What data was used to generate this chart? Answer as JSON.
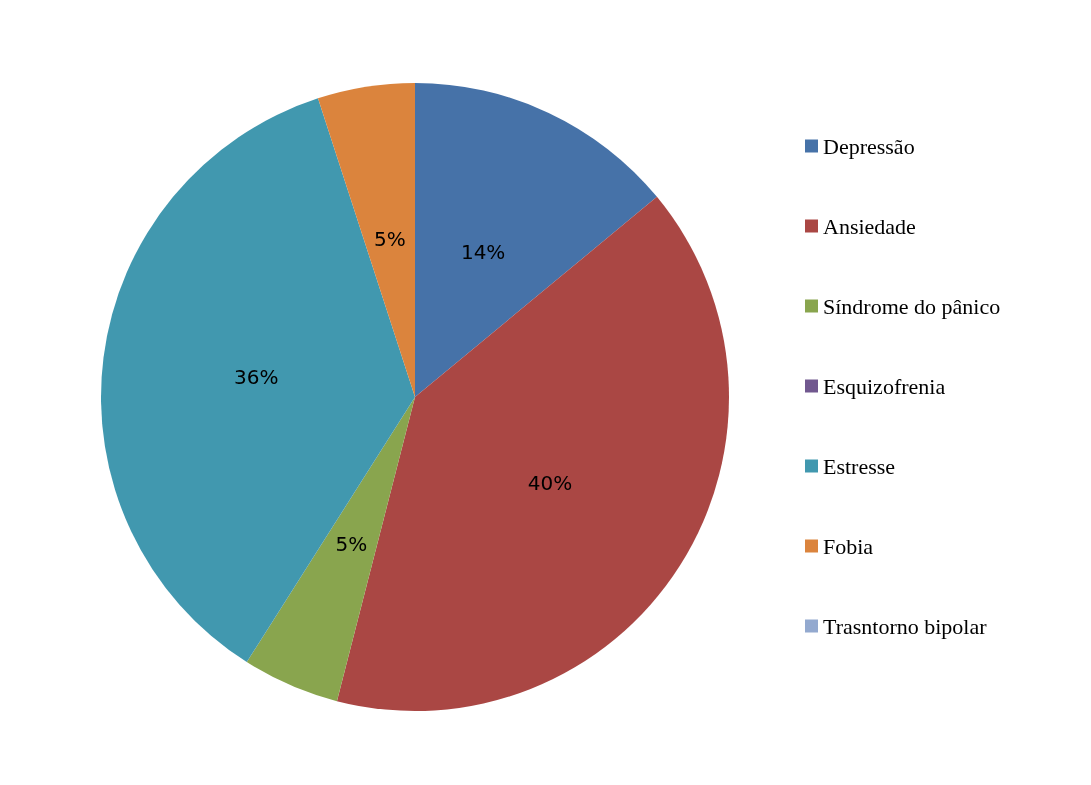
{
  "chart_data": {
    "type": "pie",
    "categories": [
      "Depressão",
      "Ansiedade",
      "Síndrome do pânico",
      "Esquizofrenia",
      "Estresse",
      "Fobia",
      "Trasntorno bipolar"
    ],
    "values": [
      14,
      40,
      5,
      0,
      36,
      5,
      0
    ],
    "colors": [
      "#4672a8",
      "#aa4744",
      "#89a54e",
      "#71588f",
      "#4198af",
      "#db843d",
      "#93a9cf"
    ],
    "value_labels": [
      "14%",
      "40%",
      "5%",
      null,
      "36%",
      "5%",
      null
    ],
    "legend": "right"
  }
}
